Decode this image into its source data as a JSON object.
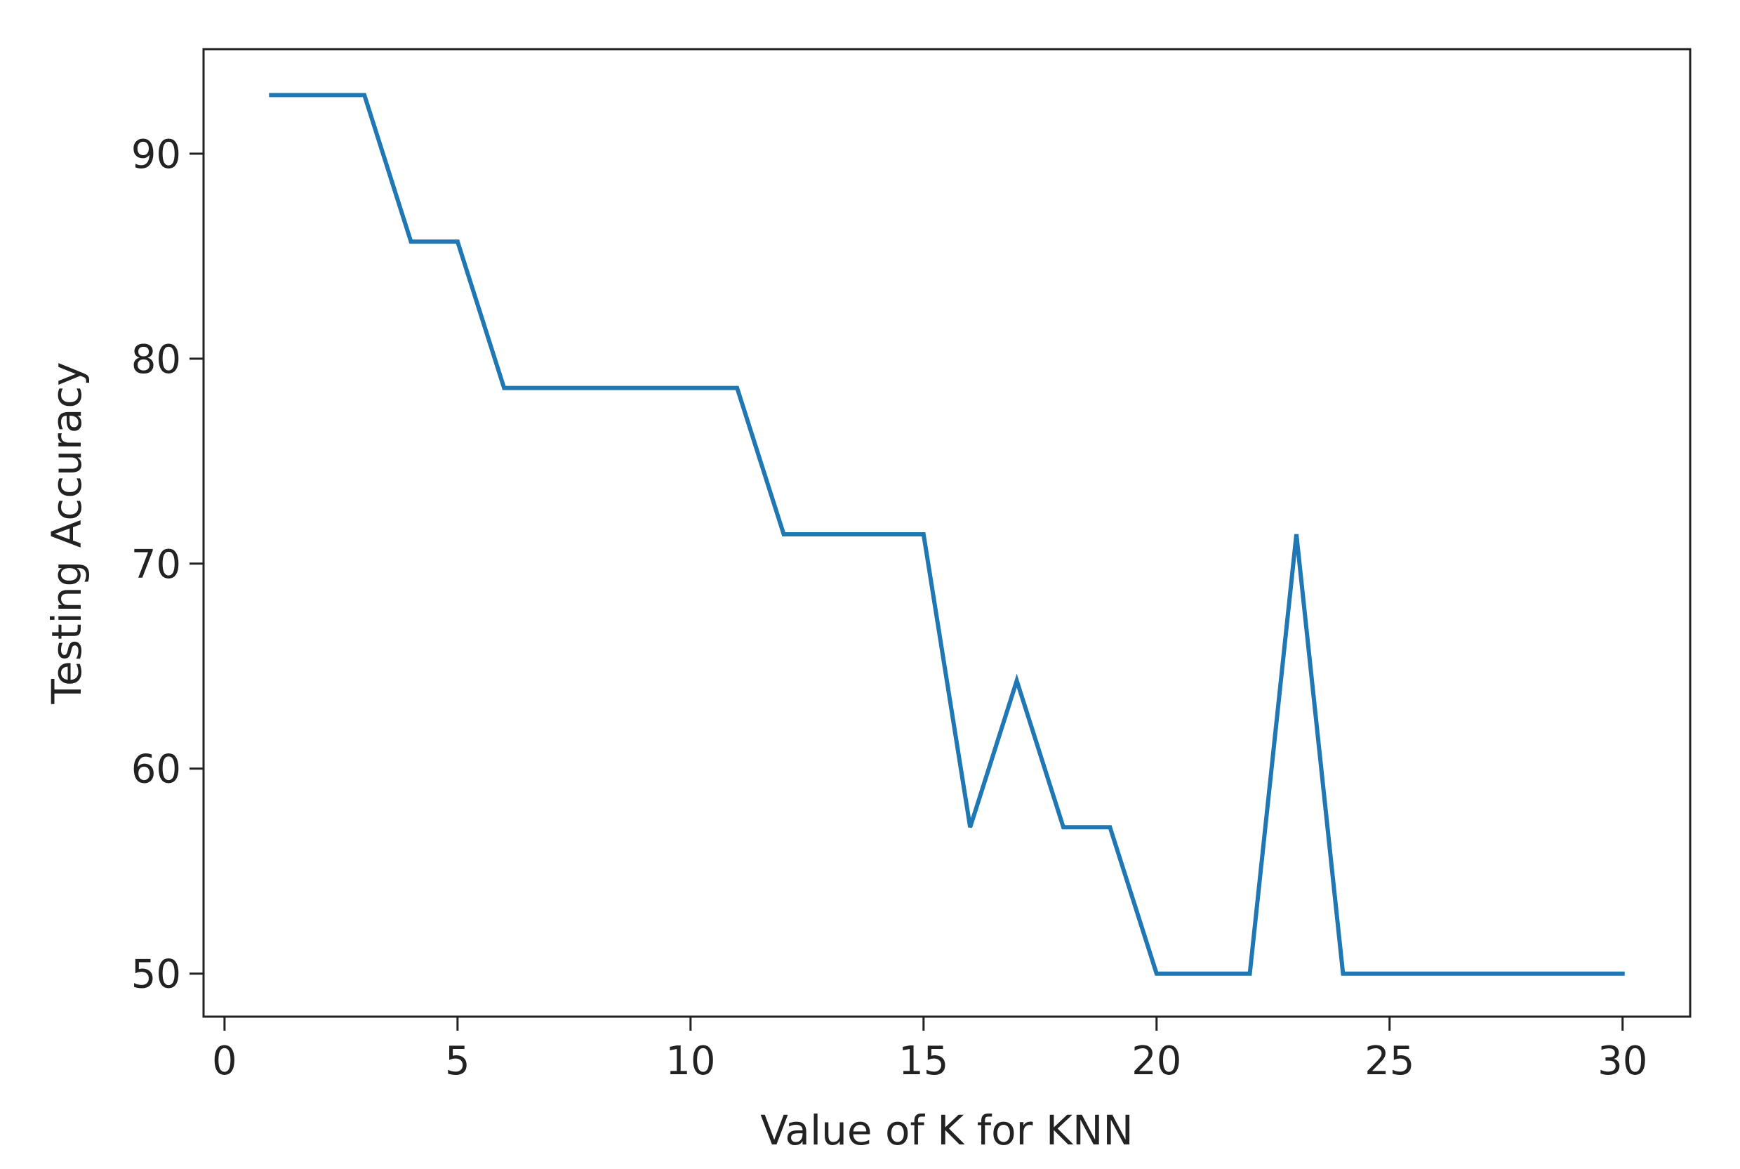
{
  "chart_data": {
    "type": "line",
    "title": "",
    "xlabel": "Value of K for KNN",
    "ylabel": "Testing Accuracy",
    "xlim": [
      -0.45,
      31.45
    ],
    "ylim": [
      47.9,
      95.1
    ],
    "xticks": [
      0,
      5,
      10,
      15,
      20,
      25,
      30
    ],
    "yticks": [
      50,
      60,
      70,
      80,
      90
    ],
    "grid": false,
    "legend": "none",
    "series": [
      {
        "color": "#1f77b4",
        "x": [
          1,
          2,
          3,
          4,
          5,
          6,
          7,
          8,
          9,
          10,
          11,
          12,
          13,
          14,
          15,
          16,
          17,
          18,
          19,
          20,
          21,
          22,
          23,
          24,
          25,
          26,
          27,
          28,
          29,
          30
        ],
        "y": [
          92.86,
          92.86,
          92.86,
          85.71,
          85.71,
          78.57,
          78.57,
          78.57,
          78.57,
          78.57,
          78.57,
          71.43,
          71.43,
          71.43,
          71.43,
          57.14,
          64.29,
          57.14,
          57.14,
          50.0,
          50.0,
          50.0,
          71.43,
          50.0,
          50.0,
          50.0,
          50.0,
          50.0,
          50.0,
          50.0
        ]
      }
    ]
  }
}
